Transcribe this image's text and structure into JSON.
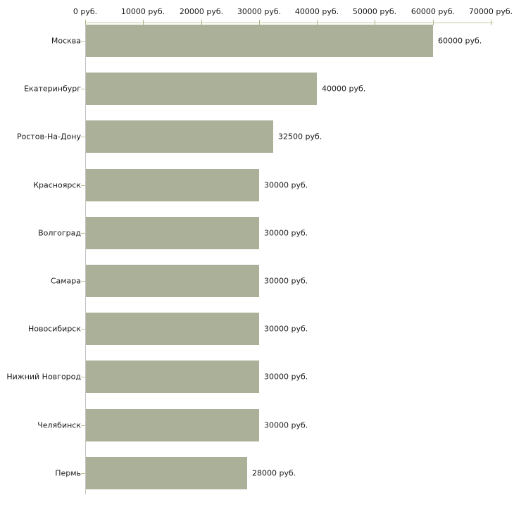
{
  "chart_data": {
    "type": "bar",
    "orientation": "horizontal",
    "title": "",
    "categories": [
      "Москва",
      "Екатеринбург",
      "Ростов-На-Дону",
      "Красноярск",
      "Волгоград",
      "Самара",
      "Новосибирск",
      "Нижний Новгород",
      "Челябинск",
      "Пермь"
    ],
    "values": [
      60000,
      40000,
      32500,
      30000,
      30000,
      30000,
      30000,
      30000,
      30000,
      28000
    ],
    "value_labels": [
      "60000 руб.",
      "40000 руб.",
      "32500 руб.",
      "30000 руб.",
      "30000 руб.",
      "30000 руб.",
      "30000 руб.",
      "30000 руб.",
      "30000 руб.",
      "28000 руб."
    ],
    "x_axis": {
      "position": "top",
      "xlim": [
        0,
        70000
      ],
      "ticks": [
        0,
        10000,
        20000,
        30000,
        40000,
        50000,
        60000,
        70000
      ],
      "tick_labels": [
        "0 руб.",
        "10000 руб.",
        "20000 руб.",
        "30000 руб.",
        "40000 руб.",
        "50000 руб.",
        "60000 руб.",
        "70000 руб."
      ]
    },
    "ylabel": "",
    "xlabel": "",
    "grid": false,
    "legend": null,
    "colors": {
      "bar": "#abb199",
      "axis_line": "#c9c9a5",
      "axis_tick": "#b3b384",
      "category_tick": "#c2c29a",
      "vertical_axis": "#c3c3c3",
      "text": "#1a1a1a",
      "background": "#ffffff"
    }
  }
}
